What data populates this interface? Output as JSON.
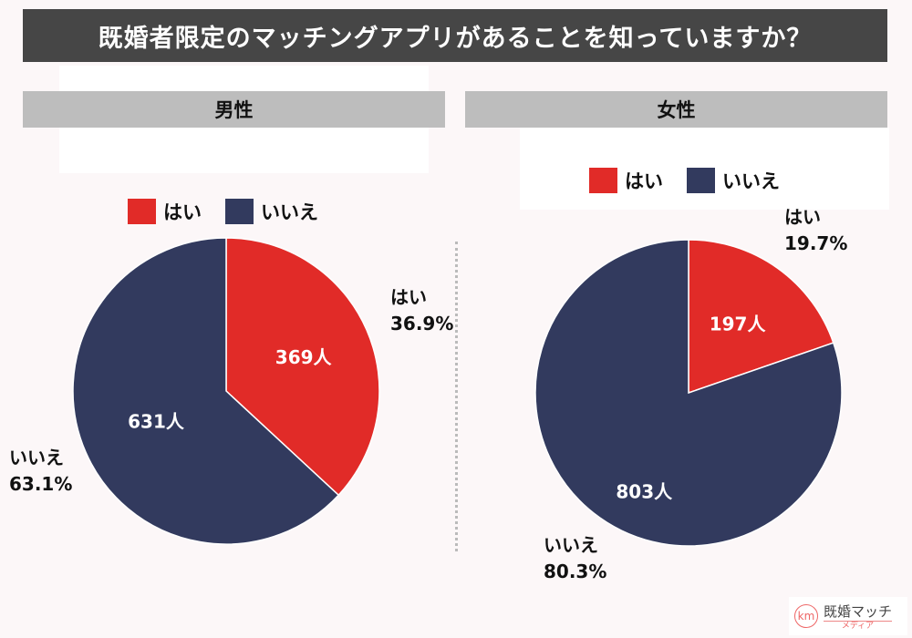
{
  "title": "既婚者限定のマッチングアプリがあることを知っていますか？",
  "logo": {
    "text": "既婚マッチ",
    "sub": "メディア",
    "mark": "km"
  },
  "colors": {
    "yes": "#e12b28",
    "no": "#323a5e"
  },
  "chart_data": [
    {
      "type": "pie",
      "title": "男性",
      "legend": [
        "はい",
        "いいえ"
      ],
      "slices": [
        {
          "label": "はい",
          "count": 369,
          "count_label": "369人",
          "percent": 36.9,
          "percent_label": "36.9%"
        },
        {
          "label": "いいえ",
          "count": 631,
          "count_label": "631人",
          "percent": 63.1,
          "percent_label": "63.1%"
        }
      ]
    },
    {
      "type": "pie",
      "title": "女性",
      "legend": [
        "はい",
        "いいえ"
      ],
      "slices": [
        {
          "label": "はい",
          "count": 197,
          "count_label": "197人",
          "percent": 19.7,
          "percent_label": "19.7%"
        },
        {
          "label": "いいえ",
          "count": 803,
          "count_label": "803人",
          "percent": 80.3,
          "percent_label": "80.3%"
        }
      ]
    }
  ]
}
